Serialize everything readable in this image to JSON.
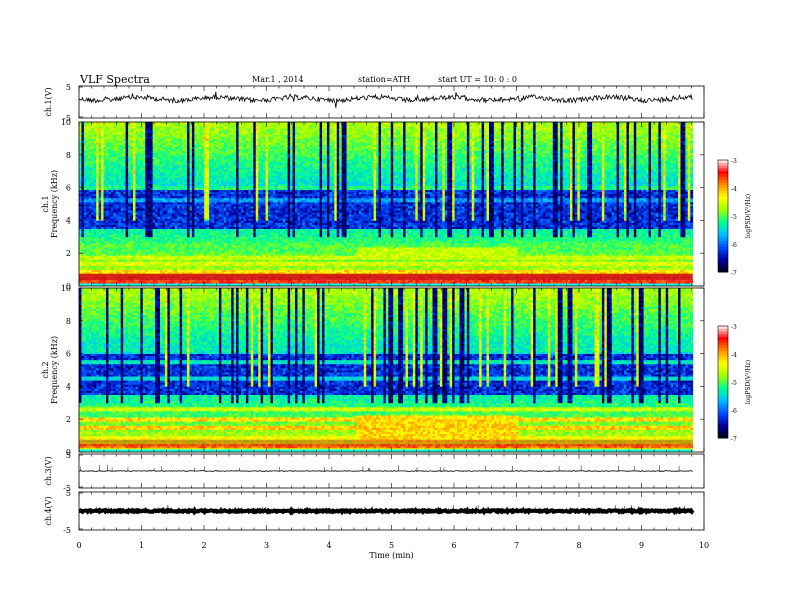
{
  "header": {
    "title": "VLF Spectra",
    "date": "Mar.1 , 2014",
    "station": "station=ATH",
    "start": "start UT = 10: 0 : 0"
  },
  "chart_data": [
    {
      "type": "line",
      "panel": "ch1-waveform",
      "ylabel": "ch.1(V)",
      "ylim": [
        -5,
        5
      ],
      "yticks": [
        "5",
        "-5"
      ],
      "baseline": 1.0
    },
    {
      "type": "heatmap",
      "panel": "ch1-spectrogram",
      "ylabel_channel": "ch.1",
      "ylabel": "Frequency (kHz)",
      "ylim": [
        0,
        10
      ],
      "yticks": [
        "0",
        "2",
        "4",
        "6",
        "8",
        "10"
      ],
      "colorbar": {
        "label": "logPSD(V²/Hz)",
        "range": [
          -7,
          -3
        ],
        "ticks": [
          "-3",
          "-4",
          "-5",
          "-6",
          "-7"
        ]
      }
    },
    {
      "type": "heatmap",
      "panel": "ch2-spectrogram",
      "ylabel_channel": "ch.2",
      "ylabel": "Frequency (kHz)",
      "ylim": [
        0,
        10
      ],
      "yticks": [
        "0",
        "2",
        "4",
        "6",
        "8",
        "10"
      ],
      "colorbar": {
        "label": "logPSD(V²/Hz)",
        "range": [
          -7,
          -3
        ],
        "ticks": [
          "-3",
          "-4",
          "-5",
          "-6",
          "-7"
        ]
      }
    },
    {
      "type": "line",
      "panel": "ch3-waveform",
      "ylabel": "ch.3(V)",
      "ylim": [
        -5,
        5
      ],
      "yticks": [
        "5",
        "-5"
      ],
      "baseline": 0.0
    },
    {
      "type": "line",
      "panel": "ch4-waveform",
      "ylabel": "ch.4(V)",
      "ylim": [
        -5,
        5
      ],
      "yticks": [
        "5",
        "-5"
      ],
      "baseline": 0.0
    }
  ],
  "xaxis": {
    "label": "Time (min)",
    "xlim": [
      0,
      10
    ],
    "ticks": [
      "0",
      "1",
      "2",
      "3",
      "4",
      "5",
      "6",
      "7",
      "8",
      "9",
      "10"
    ],
    "data_end": 9.82
  },
  "colors": {
    "colormap": [
      "#000010",
      "#0000a0",
      "#0050ff",
      "#00c0ff",
      "#00ff90",
      "#a0ff00",
      "#ffff00",
      "#ff9000",
      "#ff0000",
      "#ffffff"
    ]
  }
}
